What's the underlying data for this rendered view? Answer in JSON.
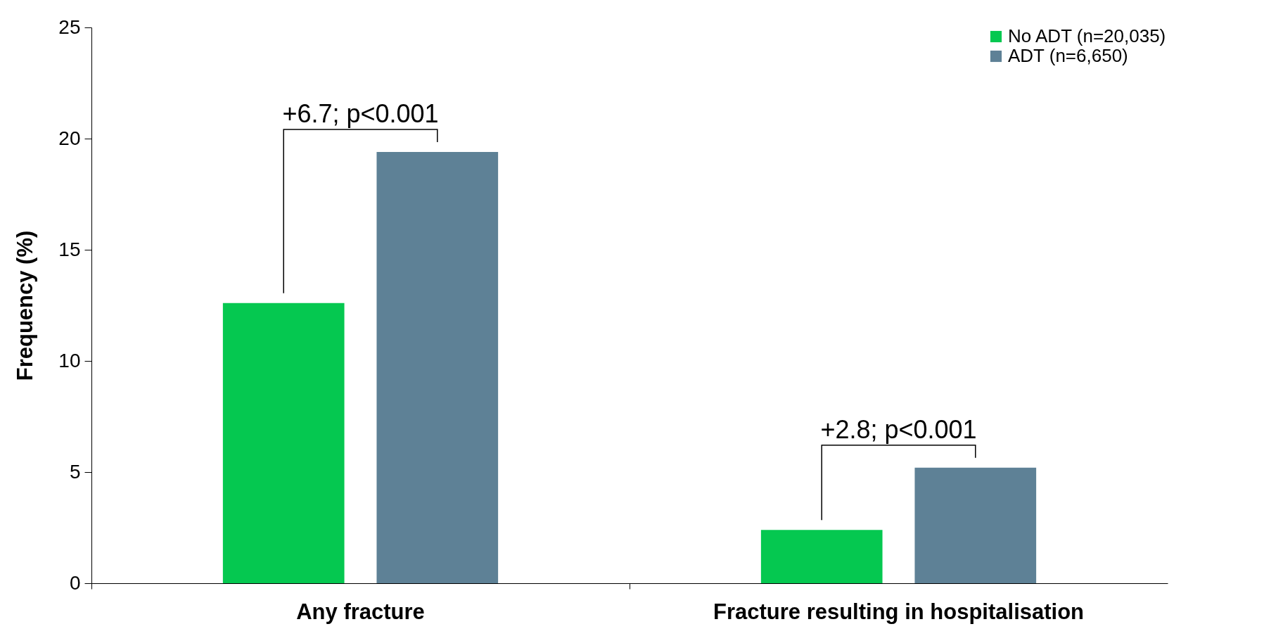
{
  "chart_data": {
    "type": "bar",
    "ylabel": "Frequency (%)",
    "categories": [
      "Any fracture",
      "Fracture resulting in hospitalisation"
    ],
    "series": [
      {
        "name": "No ADT (n=20,035)",
        "color": "#05c850",
        "values": [
          12.6,
          2.4
        ]
      },
      {
        "name": "ADT (n=6,650)",
        "color": "#5e8196",
        "values": [
          19.4,
          5.2
        ]
      }
    ],
    "ylim": [
      0,
      25
    ],
    "yticks": [
      0,
      5,
      10,
      15,
      20,
      25
    ],
    "grid": false,
    "legend": "top right",
    "annotations": [
      "+6.7; p<0.001",
      "+2.8; p<0.001"
    ]
  }
}
